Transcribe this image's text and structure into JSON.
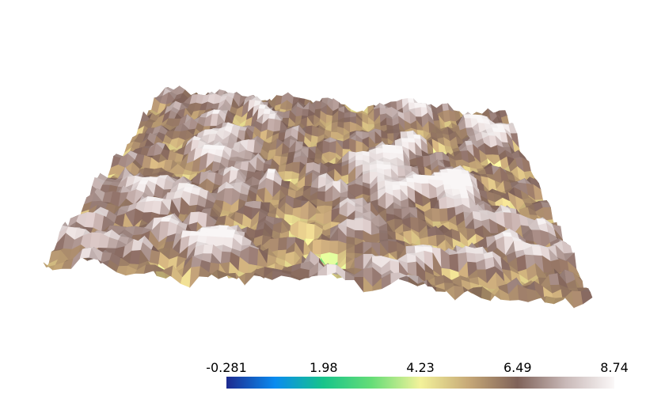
{
  "scene": {
    "type": "3d-surface-plot",
    "background": "#ffffff",
    "colormap_name": "gist_earth-like",
    "colormap_stops": [
      "#1d2a8f",
      "#0a8bf0",
      "#17c48a",
      "#66dd77",
      "#f3f29a",
      "#c6a877",
      "#7f6259",
      "#c9b9b8",
      "#fbf8f8"
    ]
  },
  "colorbar": {
    "min": -0.281,
    "max": 8.74,
    "ticks": [
      {
        "label": "-0.281",
        "value": -0.281
      },
      {
        "label": "1.98",
        "value": 1.98
      },
      {
        "label": "4.23",
        "value": 4.23
      },
      {
        "label": "6.49",
        "value": 6.49
      },
      {
        "label": "8.74",
        "value": 8.74
      }
    ]
  }
}
